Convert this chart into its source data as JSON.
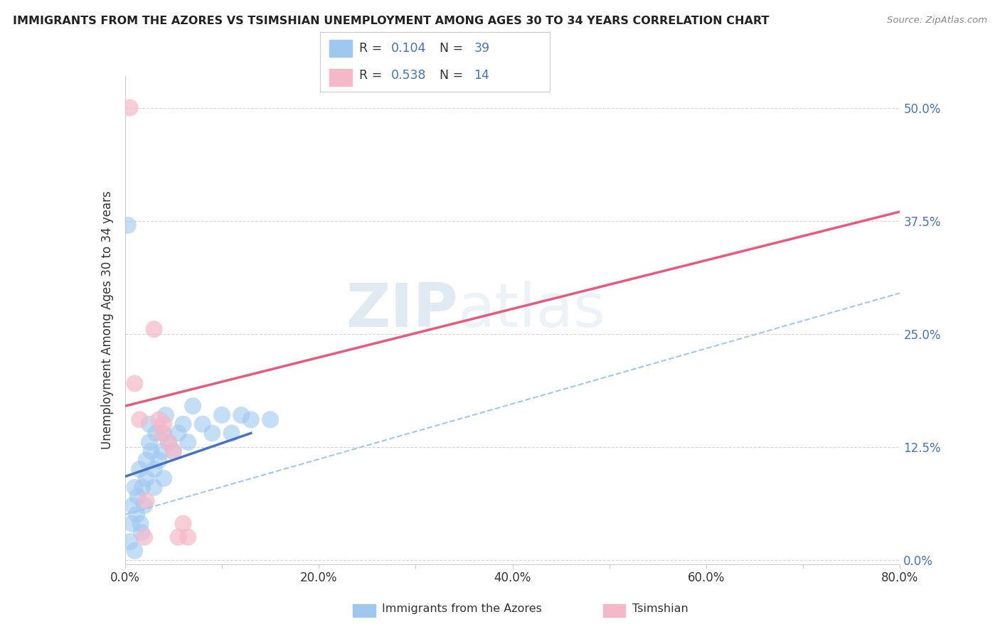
{
  "title": "IMMIGRANTS FROM THE AZORES VS TSIMSHIAN UNEMPLOYMENT AMONG AGES 30 TO 34 YEARS CORRELATION CHART",
  "source": "Source: ZipAtlas.com",
  "ylabel": "Unemployment Among Ages 30 to 34 years",
  "xlim": [
    0.0,
    0.8
  ],
  "ylim": [
    -0.005,
    0.535
  ],
  "xticks": [
    0.0,
    0.1,
    0.2,
    0.3,
    0.4,
    0.5,
    0.6,
    0.7,
    0.8
  ],
  "xticklabels": [
    "0.0%",
    "",
    "20.0%",
    "",
    "40.0%",
    "",
    "60.0%",
    "",
    "80.0%"
  ],
  "yticks": [
    0.0,
    0.125,
    0.25,
    0.375,
    0.5
  ],
  "yticklabels": [
    "0.0%",
    "12.5%",
    "25.0%",
    "37.5%",
    "50.0%"
  ],
  "blue_color": "#9EC8F0",
  "pink_color": "#F5B8C8",
  "blue_line_color": "#4472C4",
  "pink_line_color": "#E8597A",
  "blue_dash_color": "#9EC8F0",
  "R_blue": 0.104,
  "N_blue": 39,
  "R_pink": 0.538,
  "N_pink": 14,
  "blue_scatter_x": [
    0.005,
    0.007,
    0.008,
    0.01,
    0.01,
    0.012,
    0.013,
    0.015,
    0.016,
    0.017,
    0.018,
    0.02,
    0.022,
    0.022,
    0.025,
    0.025,
    0.027,
    0.03,
    0.03,
    0.032,
    0.035,
    0.038,
    0.04,
    0.04,
    0.042,
    0.045,
    0.05,
    0.055,
    0.06,
    0.065,
    0.07,
    0.08,
    0.09,
    0.1,
    0.11,
    0.12,
    0.13,
    0.15,
    0.003
  ],
  "blue_scatter_y": [
    0.02,
    0.04,
    0.06,
    0.08,
    0.01,
    0.05,
    0.07,
    0.1,
    0.04,
    0.03,
    0.08,
    0.06,
    0.11,
    0.09,
    0.13,
    0.15,
    0.12,
    0.1,
    0.08,
    0.14,
    0.11,
    0.12,
    0.09,
    0.14,
    0.16,
    0.13,
    0.12,
    0.14,
    0.15,
    0.13,
    0.17,
    0.15,
    0.14,
    0.16,
    0.14,
    0.16,
    0.155,
    0.155,
    0.37
  ],
  "pink_scatter_x": [
    0.005,
    0.01,
    0.015,
    0.02,
    0.022,
    0.03,
    0.035,
    0.038,
    0.04,
    0.045,
    0.05,
    0.055,
    0.06,
    0.065
  ],
  "pink_scatter_y": [
    0.5,
    0.195,
    0.155,
    0.025,
    0.065,
    0.255,
    0.155,
    0.14,
    0.15,
    0.13,
    0.12,
    0.025,
    0.04,
    0.025
  ],
  "blue_solid_line": {
    "x0": 0.0,
    "x1": 0.13,
    "y0": 0.092,
    "y1": 0.14
  },
  "blue_dash_line": {
    "x0": 0.0,
    "x1": 0.8,
    "y0": 0.05,
    "y1": 0.295
  },
  "pink_solid_line": {
    "x0": 0.0,
    "x1": 0.8,
    "y0": 0.17,
    "y1": 0.385
  },
  "watermark_zip": "ZIP",
  "watermark_atlas": "atlas",
  "background_color": "#FFFFFF",
  "grid_color": "#CCCCCC",
  "axis_color": "#4472C4",
  "legend_label1": "Immigrants from the Azores",
  "legend_label2": "Tsimshian"
}
